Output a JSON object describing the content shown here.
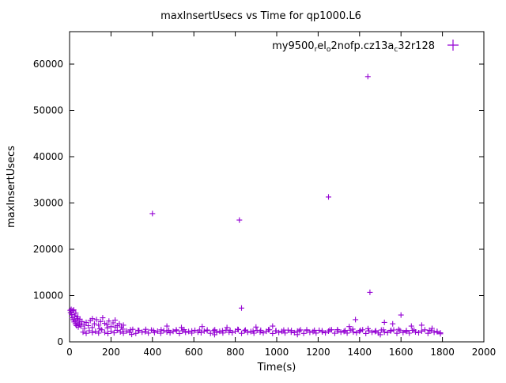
{
  "chart_data": {
    "type": "scatter",
    "title": "maxInsertUsecs vs Time for qp1000.L6",
    "xlabel": "Time(s)",
    "ylabel": "maxInsertUsecs",
    "xlim": [
      0,
      2000
    ],
    "ylim": [
      0,
      67000
    ],
    "xticks": [
      0,
      200,
      400,
      600,
      800,
      1000,
      1200,
      1400,
      1600,
      1800,
      2000
    ],
    "yticks": [
      0,
      10000,
      20000,
      30000,
      40000,
      50000,
      60000
    ],
    "grid": "off",
    "marker": "plus",
    "color": "#9400d3",
    "legend": {
      "label": "my9500_rel_o2nofp.cz13a_c32r128",
      "position": "top-right",
      "parts": [
        {
          "t": "my9500",
          "sub": false
        },
        {
          "t": "r",
          "sub": true
        },
        {
          "t": "el",
          "sub": false
        },
        {
          "t": "o",
          "sub": true
        },
        {
          "t": "2nofp.cz13a",
          "sub": false
        },
        {
          "t": "c",
          "sub": true
        },
        {
          "t": "32r128",
          "sub": false
        }
      ]
    },
    "points": [
      [
        3,
        6800
      ],
      [
        5,
        6300
      ],
      [
        8,
        7000
      ],
      [
        10,
        5900
      ],
      [
        12,
        5200
      ],
      [
        15,
        6700
      ],
      [
        18,
        4800
      ],
      [
        20,
        6900
      ],
      [
        22,
        4300
      ],
      [
        25,
        5600
      ],
      [
        28,
        3900
      ],
      [
        30,
        6200
      ],
      [
        33,
        3500
      ],
      [
        35,
        5000
      ],
      [
        38,
        4600
      ],
      [
        40,
        5400
      ],
      [
        42,
        3200
      ],
      [
        45,
        4100
      ],
      [
        48,
        3700
      ],
      [
        50,
        4900
      ],
      [
        55,
        3400
      ],
      [
        60,
        4400
      ],
      [
        70,
        3800
      ],
      [
        80,
        4200
      ],
      [
        90,
        3500
      ],
      [
        100,
        4600
      ],
      [
        110,
        5000
      ],
      [
        120,
        3900
      ],
      [
        130,
        4800
      ],
      [
        140,
        3600
      ],
      [
        150,
        4400
      ],
      [
        160,
        5200
      ],
      [
        170,
        4000
      ],
      [
        180,
        3700
      ],
      [
        190,
        4500
      ],
      [
        200,
        3300
      ],
      [
        210,
        4100
      ],
      [
        220,
        4700
      ],
      [
        230,
        3500
      ],
      [
        240,
        3900
      ],
      [
        250,
        3200
      ],
      [
        260,
        3600
      ],
      [
        65,
        2100
      ],
      [
        80,
        1850
      ],
      [
        95,
        2400
      ],
      [
        110,
        2000
      ],
      [
        125,
        2250
      ],
      [
        140,
        1900
      ],
      [
        155,
        2600
      ],
      [
        170,
        2050
      ],
      [
        185,
        1800
      ],
      [
        200,
        2300
      ],
      [
        215,
        1950
      ],
      [
        230,
        2500
      ],
      [
        245,
        2150
      ],
      [
        260,
        1870
      ],
      [
        275,
        2350
      ],
      [
        290,
        2020
      ],
      [
        305,
        2700
      ],
      [
        320,
        1830
      ],
      [
        335,
        2450
      ],
      [
        350,
        2080
      ],
      [
        365,
        2200
      ],
      [
        380,
        1900
      ],
      [
        395,
        2550
      ],
      [
        410,
        2010
      ],
      [
        425,
        2300
      ],
      [
        440,
        1860
      ],
      [
        455,
        2420
      ],
      [
        470,
        2130
      ],
      [
        485,
        1940
      ],
      [
        500,
        2280
      ],
      [
        515,
        2600
      ],
      [
        530,
        1820
      ],
      [
        545,
        2380
      ],
      [
        560,
        2060
      ],
      [
        575,
        2240
      ],
      [
        590,
        1890
      ],
      [
        605,
        2490
      ],
      [
        620,
        2110
      ],
      [
        635,
        1960
      ],
      [
        650,
        2330
      ],
      [
        665,
        2570
      ],
      [
        680,
        1840
      ],
      [
        695,
        2410
      ],
      [
        710,
        2030
      ],
      [
        725,
        2260
      ],
      [
        740,
        1910
      ],
      [
        755,
        2520
      ],
      [
        770,
        2090
      ],
      [
        785,
        1970
      ],
      [
        800,
        2310
      ],
      [
        815,
        2640
      ],
      [
        830,
        1850
      ],
      [
        845,
        2390
      ],
      [
        860,
        2070
      ],
      [
        875,
        2230
      ],
      [
        890,
        1880
      ],
      [
        905,
        2480
      ],
      [
        920,
        2120
      ],
      [
        935,
        1930
      ],
      [
        950,
        2290
      ],
      [
        965,
        2610
      ],
      [
        980,
        1810
      ],
      [
        995,
        2370
      ],
      [
        1010,
        2040
      ],
      [
        1025,
        2270
      ],
      [
        1040,
        1920
      ],
      [
        1055,
        2530
      ],
      [
        1070,
        2100
      ],
      [
        1085,
        1980
      ],
      [
        1100,
        2320
      ],
      [
        1115,
        2580
      ],
      [
        1130,
        1830
      ],
      [
        1145,
        2400
      ],
      [
        1160,
        2050
      ],
      [
        1175,
        2210
      ],
      [
        1190,
        1900
      ],
      [
        1205,
        2500
      ],
      [
        1220,
        2140
      ],
      [
        1235,
        1950
      ],
      [
        1250,
        2300
      ],
      [
        1265,
        2620
      ],
      [
        1280,
        1860
      ],
      [
        1295,
        2360
      ],
      [
        1310,
        2080
      ],
      [
        1325,
        2240
      ],
      [
        1340,
        1890
      ],
      [
        1355,
        2510
      ],
      [
        1370,
        2120
      ],
      [
        1385,
        1940
      ],
      [
        1400,
        2280
      ],
      [
        1415,
        2590
      ],
      [
        1430,
        1820
      ],
      [
        1445,
        2380
      ],
      [
        1460,
        2060
      ],
      [
        1475,
        2220
      ],
      [
        1490,
        1910
      ],
      [
        1505,
        2540
      ],
      [
        1520,
        2100
      ],
      [
        1535,
        1970
      ],
      [
        1550,
        2330
      ],
      [
        1565,
        2560
      ],
      [
        1580,
        1850
      ],
      [
        1595,
        2420
      ],
      [
        1610,
        2020
      ],
      [
        1625,
        2250
      ],
      [
        1640,
        1880
      ],
      [
        1655,
        2470
      ],
      [
        1670,
        2130
      ],
      [
        1685,
        1960
      ],
      [
        1700,
        2310
      ],
      [
        1715,
        2600
      ],
      [
        1730,
        1840
      ],
      [
        1745,
        2390
      ],
      [
        1760,
        2070
      ],
      [
        1775,
        2200
      ],
      [
        1790,
        1950
      ],
      [
        72,
        2900
      ],
      [
        109,
        3100
      ],
      [
        146,
        2800
      ],
      [
        183,
        3000
      ],
      [
        220,
        3200
      ],
      [
        257,
        2750
      ],
      [
        294,
        2600
      ],
      [
        331,
        2500
      ],
      [
        368,
        2700
      ],
      [
        405,
        2450
      ],
      [
        442,
        2600
      ],
      [
        479,
        2500
      ],
      [
        516,
        2400
      ],
      [
        553,
        2650
      ],
      [
        590,
        2350
      ],
      [
        627,
        2550
      ],
      [
        664,
        2450
      ],
      [
        701,
        2600
      ],
      [
        738,
        2400
      ],
      [
        775,
        2500
      ],
      [
        812,
        2700
      ],
      [
        849,
        2550
      ],
      [
        886,
        2350
      ],
      [
        923,
        2500
      ],
      [
        960,
        2600
      ],
      [
        997,
        2400
      ],
      [
        1034,
        2550
      ],
      [
        1071,
        2450
      ],
      [
        1108,
        2350
      ],
      [
        1145,
        2600
      ],
      [
        1182,
        2500
      ],
      [
        1219,
        2400
      ],
      [
        1256,
        2550
      ],
      [
        1293,
        2650
      ],
      [
        1330,
        2450
      ],
      [
        1367,
        2750
      ],
      [
        1404,
        2500
      ],
      [
        1441,
        2850
      ],
      [
        1478,
        2400
      ],
      [
        1515,
        2600
      ],
      [
        1552,
        2500
      ],
      [
        1589,
        2700
      ],
      [
        1626,
        2450
      ],
      [
        1663,
        2550
      ],
      [
        1700,
        2350
      ],
      [
        1737,
        2500
      ],
      [
        1774,
        2250
      ],
      [
        400,
        27700
      ],
      [
        820,
        26300
      ],
      [
        830,
        7300
      ],
      [
        1250,
        31300
      ],
      [
        1440,
        57300
      ],
      [
        1450,
        10700
      ],
      [
        1600,
        5800
      ],
      [
        1520,
        4200
      ],
      [
        1560,
        3900
      ],
      [
        1650,
        3400
      ],
      [
        1700,
        3600
      ],
      [
        1750,
        2900
      ],
      [
        1380,
        4800
      ],
      [
        1350,
        3300
      ],
      [
        980,
        3400
      ],
      [
        900,
        3200
      ],
      [
        760,
        3100
      ],
      [
        640,
        3300
      ],
      [
        540,
        3100
      ],
      [
        470,
        3400
      ],
      [
        300,
        1600
      ],
      [
        700,
        1550
      ],
      [
        1100,
        1580
      ],
      [
        1500,
        1560
      ],
      [
        1790,
        1750
      ]
    ]
  }
}
